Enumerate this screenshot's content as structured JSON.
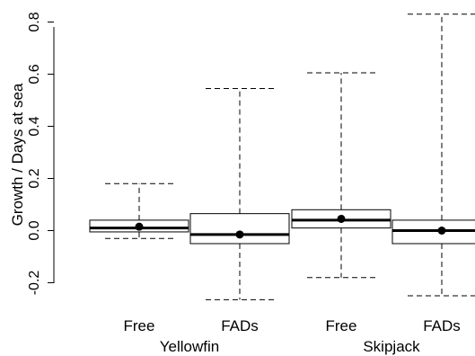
{
  "chart_data": {
    "type": "boxplot",
    "title": "",
    "ylabel": "Growth / Days at sea",
    "xlabel": "",
    "ylim": [
      -0.29,
      0.84
    ],
    "yticks": [
      -0.2,
      0.0,
      0.2,
      0.4,
      0.6,
      0.8
    ],
    "ytick_labels": [
      "-0.2",
      "0.0",
      "0.2",
      "0.4",
      "0.6",
      "0.8"
    ],
    "groups": [
      "Yellowfin",
      "Skipjack"
    ],
    "categories": [
      "Free",
      "FADs",
      "Free",
      "FADs"
    ],
    "boxes": [
      {
        "group": "Yellowfin",
        "label": "Free",
        "whisker_low": -0.03,
        "q1": -0.005,
        "median": 0.01,
        "q3": 0.04,
        "whisker_high": 0.18,
        "mean": 0.015
      },
      {
        "group": "Yellowfin",
        "label": "FADs",
        "whisker_low": -0.265,
        "q1": -0.05,
        "median": -0.015,
        "q3": 0.065,
        "whisker_high": 0.545,
        "mean": -0.015
      },
      {
        "group": "Skipjack",
        "label": "Free",
        "whisker_low": -0.18,
        "q1": 0.01,
        "median": 0.04,
        "q3": 0.08,
        "whisker_high": 0.605,
        "mean": 0.045
      },
      {
        "group": "Skipjack",
        "label": "FADs",
        "whisker_low": -0.25,
        "q1": -0.05,
        "median": 0.0,
        "q3": 0.04,
        "whisker_high": 0.83,
        "mean": 0.0
      }
    ],
    "grid": false,
    "legend": "none"
  }
}
